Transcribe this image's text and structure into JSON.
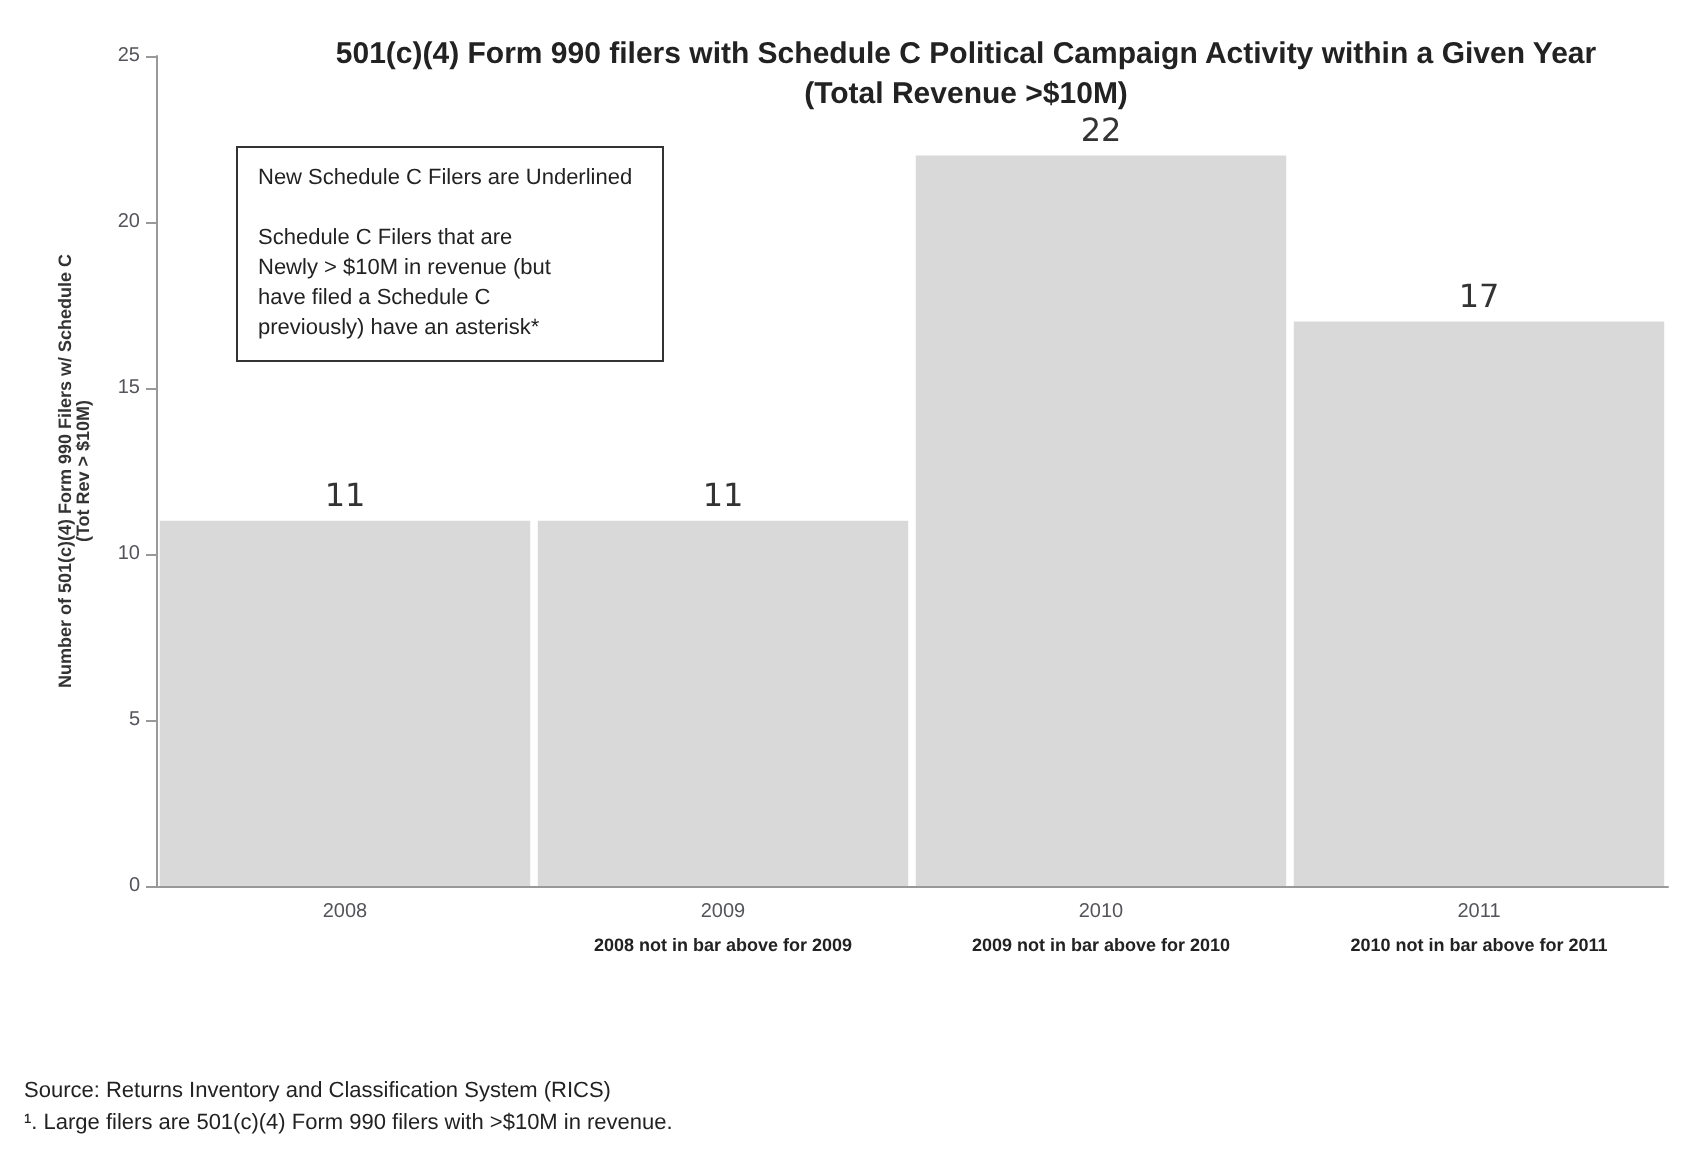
{
  "chart_data": {
    "type": "bar",
    "title": "501(c)(4) Form 990 filers with Schedule C Political Campaign Activity within a Given Year\n(Total Revenue >$10M)",
    "ylabel": "Number of 501(c)(4) Form 990 Filers w/ Schedule C\n(Tot Rev > $10M)",
    "categories": [
      "2008",
      "2009",
      "2010",
      "2011"
    ],
    "values": [
      11,
      11,
      22,
      17
    ],
    "color": "#d9d9d9",
    "data_labels": true,
    "ylim": [
      0,
      25
    ],
    "yticks": [
      0,
      5,
      10,
      15,
      20,
      25
    ],
    "grid": false,
    "annotations": [
      "New Schedule C Filers are Underlined\n\nSchedule C Filers that are\nNewly > $10M in revenue (but\nhave filed a Schedule C\npreviously) have an asterisk*",
      "2008 not in bar above for 2009",
      "2009 not in bar above for 2010",
      "2010 not in bar above for 2011",
      "Source: Returns Inventory and Classification System (RICS)",
      "¹. Large filers are 501(c)(4) Form 990 filers with >$10M in revenue."
    ]
  }
}
